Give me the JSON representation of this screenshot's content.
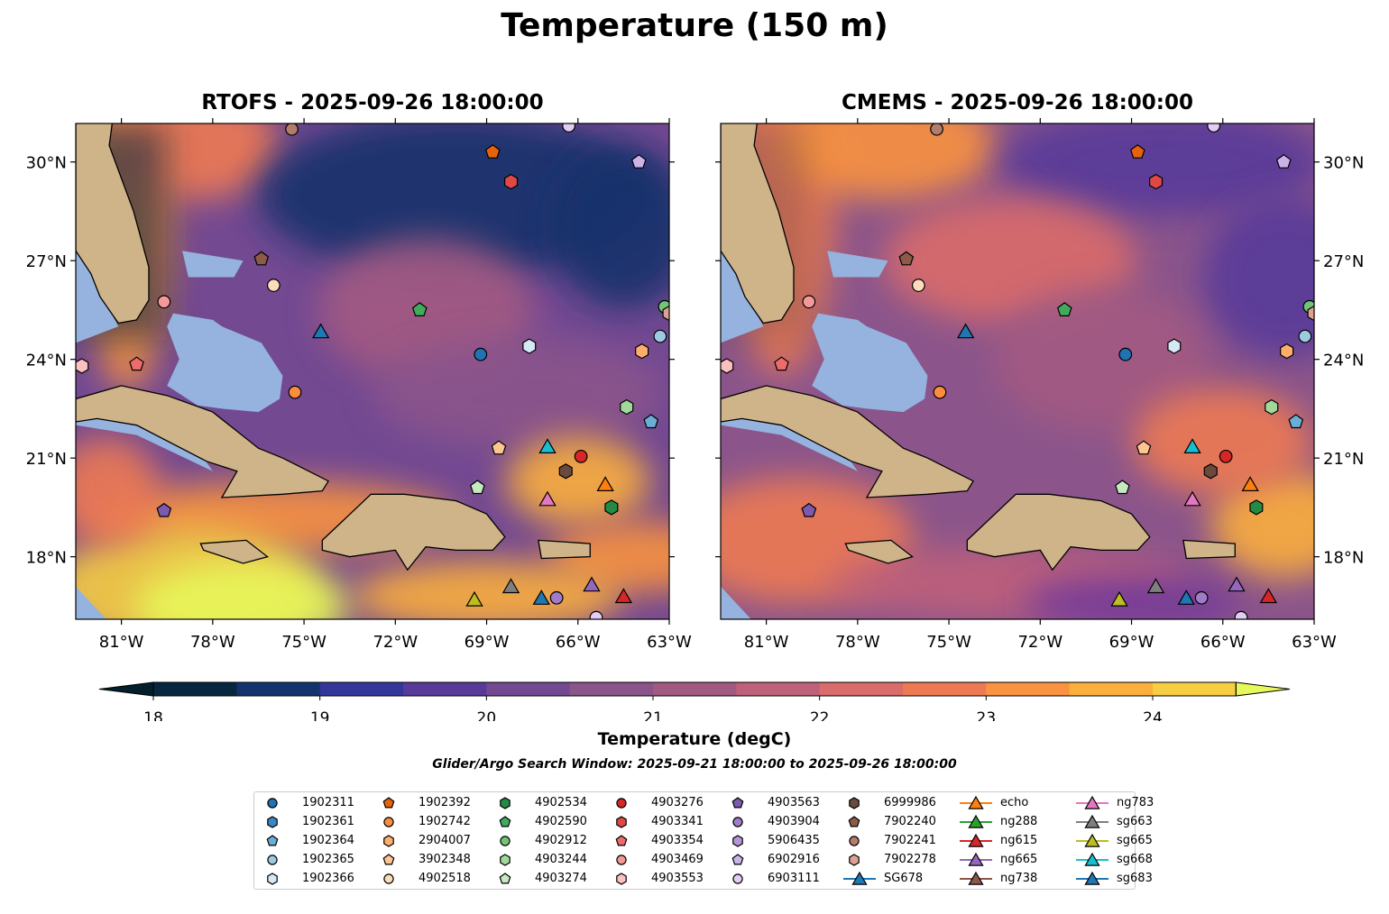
{
  "title": "Temperature (150 m)",
  "chart_data": {
    "type": "heatmap",
    "title": "Temperature (150 m)",
    "panels": [
      {
        "title": "RTOFS - 2025-09-26 18:00:00"
      },
      {
        "title": "CMEMS - 2025-09-26 18:00:00"
      }
    ],
    "xlim": [
      -82.5,
      -63
    ],
    "ylim": [
      16.1,
      31.2
    ],
    "xticks": [
      {
        "v": -81,
        "label": "81°W"
      },
      {
        "v": -78,
        "label": "78°W"
      },
      {
        "v": -75,
        "label": "75°W"
      },
      {
        "v": -72,
        "label": "72°W"
      },
      {
        "v": -69,
        "label": "69°W"
      },
      {
        "v": -66,
        "label": "66°W"
      },
      {
        "v": -63,
        "label": "63°W"
      }
    ],
    "yticks": [
      {
        "v": 30,
        "label": "30°N"
      },
      {
        "v": 27,
        "label": "27°N"
      },
      {
        "v": 24,
        "label": "24°N"
      },
      {
        "v": 21,
        "label": "21°N"
      },
      {
        "v": 18,
        "label": "18°N"
      }
    ],
    "colorbar": {
      "label": "Temperature (degC)",
      "min": 18,
      "max": 24.5,
      "step": 0.5,
      "extend": "both",
      "ticks": [
        {
          "v": 18,
          "label": "18"
        },
        {
          "v": 19,
          "label": "19"
        },
        {
          "v": 20,
          "label": "20"
        },
        {
          "v": 21,
          "label": "21"
        },
        {
          "v": 22,
          "label": "22"
        },
        {
          "v": 23,
          "label": "23"
        },
        {
          "v": 24,
          "label": "24"
        }
      ],
      "colors": [
        "#07263f",
        "#13336c",
        "#333799",
        "#583a9a",
        "#734992",
        "#8b558b",
        "#a35a82",
        "#bf617a",
        "#da6c6b",
        "#ee7a53",
        "#f99340",
        "#fbaf3c",
        "#f6cd43"
      ],
      "under": "#031f2c",
      "over": "#e7f85a"
    },
    "subtitle": "Glider/Argo Search Window: 2025-09-21 18:00:00 to 2025-09-26 18:00:00",
    "legend": [
      {
        "name": "1902311",
        "shape": "circle",
        "color": "#2171b5",
        "pos": [
          [
            -69.2,
            24.15
          ]
        ]
      },
      {
        "name": "1902361",
        "shape": "hexagon",
        "color": "#3b87c2",
        "pos": []
      },
      {
        "name": "1902364",
        "shape": "pentagon",
        "color": "#6aaed6",
        "pos": [
          [
            -63.6,
            22.1
          ]
        ]
      },
      {
        "name": "1902365",
        "shape": "circle",
        "color": "#9ecae1",
        "pos": [
          [
            -63.3,
            24.7
          ]
        ]
      },
      {
        "name": "1902366",
        "shape": "hexagon",
        "color": "#d6e8f5",
        "pos": [
          [
            -67.6,
            24.4
          ]
        ]
      },
      {
        "name": "1902392",
        "shape": "pentagon",
        "color": "#e6620d",
        "pos": [
          [
            -68.8,
            30.3
          ]
        ]
      },
      {
        "name": "1902742",
        "shape": "circle",
        "color": "#fd8d3c",
        "pos": [
          [
            -75.3,
            23.0
          ]
        ]
      },
      {
        "name": "2904007",
        "shape": "hexagon",
        "color": "#fdae6b",
        "pos": [
          [
            -63.9,
            24.25
          ]
        ]
      },
      {
        "name": "3902348",
        "shape": "pentagon",
        "color": "#fdc590",
        "pos": [
          [
            -68.6,
            21.3
          ]
        ]
      },
      {
        "name": "4902518",
        "shape": "circle",
        "color": "#fddcbc",
        "pos": [
          [
            -76.0,
            26.25
          ]
        ]
      },
      {
        "name": "4902534",
        "shape": "hexagon",
        "color": "#238b45",
        "pos": [
          [
            -64.9,
            19.5
          ]
        ]
      },
      {
        "name": "4902590",
        "shape": "pentagon",
        "color": "#41ab5d",
        "pos": [
          [
            -71.2,
            25.5
          ]
        ]
      },
      {
        "name": "4902912",
        "shape": "circle",
        "color": "#74c476",
        "pos": [
          [
            -63.15,
            25.6
          ]
        ]
      },
      {
        "name": "4903244",
        "shape": "hexagon",
        "color": "#a1d99b",
        "pos": [
          [
            -64.4,
            22.55
          ]
        ]
      },
      {
        "name": "4903274",
        "shape": "pentagon",
        "color": "#c7e9c0",
        "pos": [
          [
            -69.3,
            20.1
          ]
        ]
      },
      {
        "name": "4903276",
        "shape": "circle",
        "color": "#d62728",
        "pos": [
          [
            -65.9,
            21.05
          ]
        ]
      },
      {
        "name": "4903341",
        "shape": "hexagon",
        "color": "#e04848",
        "pos": [
          [
            -68.2,
            29.4
          ]
        ]
      },
      {
        "name": "4903354",
        "shape": "pentagon",
        "color": "#ee6b6b",
        "pos": [
          [
            -80.5,
            23.85
          ]
        ]
      },
      {
        "name": "4903469",
        "shape": "circle",
        "color": "#f59898",
        "pos": [
          [
            -79.6,
            25.75
          ]
        ]
      },
      {
        "name": "4903553",
        "shape": "hexagon",
        "color": "#fbc0c0",
        "pos": [
          [
            -82.3,
            23.8
          ]
        ]
      },
      {
        "name": "4903563",
        "shape": "pentagon",
        "color": "#7c5ab0",
        "pos": [
          [
            -79.6,
            19.4
          ]
        ]
      },
      {
        "name": "4903904",
        "shape": "circle",
        "color": "#a07cc8",
        "pos": [
          [
            -66.7,
            16.75
          ]
        ]
      },
      {
        "name": "5906435",
        "shape": "hexagon",
        "color": "#b596d8",
        "pos": []
      },
      {
        "name": "6902916",
        "shape": "pentagon",
        "color": "#cbb3ea",
        "pos": [
          [
            -64.0,
            30.0
          ]
        ]
      },
      {
        "name": "6903111",
        "shape": "circle",
        "color": "#e2cdf5",
        "pos": [
          [
            -66.3,
            31.1
          ],
          [
            -65.4,
            16.15
          ]
        ]
      },
      {
        "name": "6999986",
        "shape": "hexagon",
        "color": "#6b4a3e",
        "pos": [
          [
            -66.4,
            20.6
          ]
        ]
      },
      {
        "name": "7902240",
        "shape": "pentagon",
        "color": "#8c5a48",
        "pos": [
          [
            -76.4,
            27.05
          ]
        ]
      },
      {
        "name": "7902241",
        "shape": "circle",
        "color": "#b37c6c",
        "pos": [
          [
            -75.4,
            31.0
          ]
        ]
      },
      {
        "name": "7902278",
        "shape": "hexagon",
        "color": "#dca393",
        "pos": [
          [
            -63.0,
            25.4
          ]
        ]
      },
      {
        "name": "SG678",
        "shape": "triangle",
        "color": "#1f77b4",
        "pos": [
          [
            -74.45,
            24.85
          ]
        ]
      },
      {
        "name": "echo",
        "shape": "triangle",
        "color": "#ff7f0e",
        "pos": [
          [
            -65.1,
            20.2
          ]
        ]
      },
      {
        "name": "ng288",
        "shape": "triangle",
        "color": "#2ca02c",
        "pos": []
      },
      {
        "name": "ng615",
        "shape": "triangle",
        "color": "#d62728",
        "pos": [
          [
            -64.5,
            16.8
          ]
        ]
      },
      {
        "name": "ng665",
        "shape": "triangle",
        "color": "#9467bd",
        "pos": [
          [
            -65.55,
            17.15
          ]
        ]
      },
      {
        "name": "ng738",
        "shape": "triangle",
        "color": "#8c564b",
        "pos": []
      },
      {
        "name": "ng783",
        "shape": "triangle",
        "color": "#e377c2",
        "pos": [
          [
            -67.0,
            19.75
          ]
        ]
      },
      {
        "name": "sg663",
        "shape": "triangle",
        "color": "#7f7f7f",
        "pos": [
          [
            -68.2,
            17.1
          ]
        ]
      },
      {
        "name": "sg665",
        "shape": "triangle",
        "color": "#bcbd22",
        "pos": [
          [
            -69.4,
            16.7
          ]
        ]
      },
      {
        "name": "sg668",
        "shape": "triangle",
        "color": "#17becf",
        "pos": [
          [
            -67.0,
            21.35
          ]
        ]
      },
      {
        "name": "sg683",
        "shape": "triangle",
        "color": "#1f77b4",
        "pos": [
          [
            -67.2,
            16.75
          ]
        ]
      }
    ]
  }
}
